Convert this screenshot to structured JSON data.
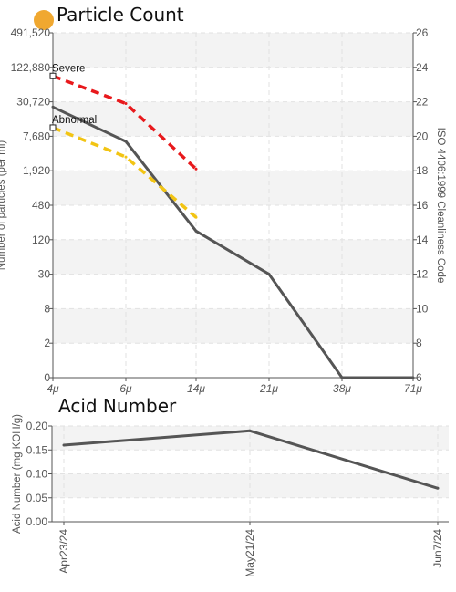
{
  "status_indicator": {
    "color": "#f0a830"
  },
  "chart_data": [
    {
      "type": "line",
      "title": "Particle Count",
      "xlabel": "",
      "ylabel": "Number of particles (per ml)",
      "y2label": "ISO 4406:1999 Cleanliness Code",
      "categories": [
        "4μ",
        "6μ",
        "14μ",
        "21μ",
        "38μ",
        "71μ"
      ],
      "y_scale": "log-like (each tick = ×4, ISO code step)",
      "y_ticks": [
        "0",
        "2",
        "8",
        "30",
        "120",
        "480",
        "1,920",
        "7,680",
        "30,720",
        "122,880",
        "491,520"
      ],
      "y2_ticks": [
        "6",
        "8",
        "10",
        "12",
        "14",
        "16",
        "18",
        "20",
        "22",
        "24",
        "26"
      ],
      "y2_range": [
        6,
        26
      ],
      "series": [
        {
          "name": "",
          "color": "#555555",
          "style": "solid",
          "x": [
            "4μ",
            "6μ",
            "14μ",
            "21μ",
            "38μ",
            "71μ"
          ],
          "iso_code": [
            21.7,
            19.7,
            14.5,
            12.0,
            6.0,
            6.0
          ]
        },
        {
          "name": "Severe",
          "color": "#e8191c",
          "style": "dashed",
          "x": [
            "4μ",
            "6μ",
            "14μ"
          ],
          "iso_code": [
            23.5,
            21.9,
            18.1
          ]
        },
        {
          "name": "Abnormal",
          "color": "#f2c413",
          "style": "dashed",
          "x": [
            "4μ",
            "6μ",
            "14μ"
          ],
          "iso_code": [
            20.5,
            18.8,
            15.3
          ]
        }
      ],
      "annotations": [
        "Severe",
        "Abnormal"
      ]
    },
    {
      "type": "line",
      "title": "Acid Number",
      "xlabel": "",
      "ylabel": "Acid Number (mg KOH/g)",
      "categories": [
        "Apr23/24",
        "May21/24",
        "Jun7/24"
      ],
      "ylim": [
        0,
        0.2
      ],
      "y_ticks": [
        "0.00",
        "0.05",
        "0.10",
        "0.15",
        "0.20"
      ],
      "series": [
        {
          "name": "",
          "color": "#555555",
          "x": [
            "Apr23/24",
            "May21/24",
            "Jun7/24"
          ],
          "values": [
            0.16,
            0.19,
            0.07
          ]
        }
      ]
    }
  ]
}
